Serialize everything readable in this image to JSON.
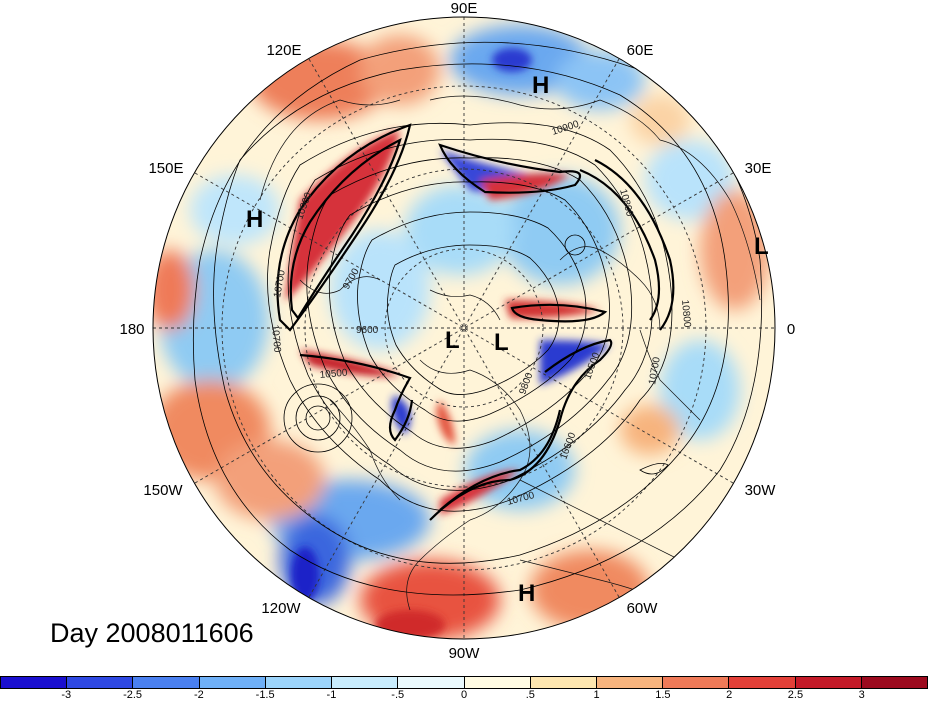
{
  "map": {
    "title": "Day 2008011606",
    "projection": "north polar stereographic",
    "longitude_labels": [
      {
        "text": "90E",
        "lon": 90
      },
      {
        "text": "60E",
        "lon": 60
      },
      {
        "text": "30E",
        "lon": 30
      },
      {
        "text": "0",
        "lon": 0
      },
      {
        "text": "30W",
        "lon": -30
      },
      {
        "text": "60W",
        "lon": -60
      },
      {
        "text": "90W",
        "lon": -90
      },
      {
        "text": "120W",
        "lon": -120
      },
      {
        "text": "150W",
        "lon": -150
      },
      {
        "text": "180",
        "lon": 180
      },
      {
        "text": "150E",
        "lon": 150
      },
      {
        "text": "120E",
        "lon": 120
      }
    ],
    "pressure_systems": [
      {
        "type": "H",
        "label": "H"
      },
      {
        "type": "H",
        "label": "H"
      },
      {
        "type": "H",
        "label": "H"
      },
      {
        "type": "L",
        "label": "L"
      },
      {
        "type": "L",
        "label": "L"
      },
      {
        "type": "L",
        "label": "L"
      }
    ],
    "contour_labels": [
      "10900",
      "10900",
      "10700",
      "9700",
      "9600",
      "10500",
      "10800",
      "10700",
      "10500",
      "10700",
      "10800",
      "10700",
      "9800",
      "10600"
    ],
    "colorbar": {
      "ticks": [
        "-3",
        "-2.5",
        "-2",
        "-1.5",
        "-1",
        "-.5",
        "0",
        ".5",
        "1",
        "1.5",
        "2",
        "2.5",
        "3"
      ],
      "colors": [
        "#1a0fd0",
        "#2e48e3",
        "#4a80f0",
        "#6fb0f7",
        "#9cd4fb",
        "#c8ecfd",
        "#eaf9fd",
        "#fffbe3",
        "#fde6b0",
        "#f7b47e",
        "#ef7a58",
        "#e34038",
        "#c41a28",
        "#9c0a1e"
      ]
    }
  }
}
